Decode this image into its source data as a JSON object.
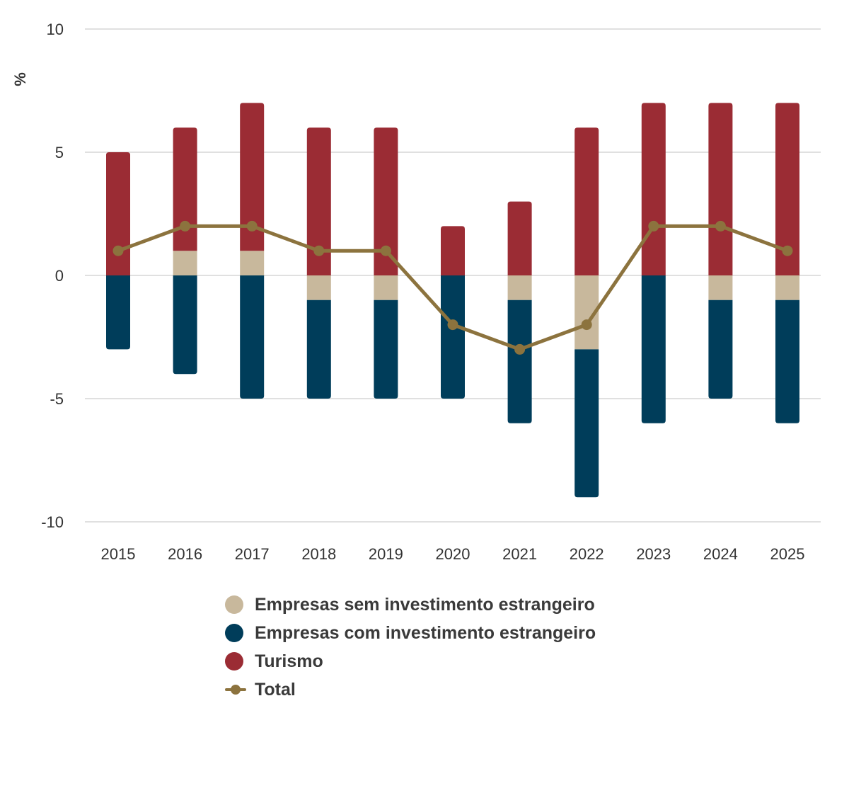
{
  "chart_data": {
    "type": "bar",
    "stacked": true,
    "categories": [
      "2015",
      "2016",
      "2017",
      "2018",
      "2019",
      "2020",
      "2021",
      "2022",
      "2023",
      "2024",
      "2025"
    ],
    "ylabel": "%",
    "ylim": [
      -10,
      10
    ],
    "yticks": [
      10,
      5,
      0,
      -5,
      -10
    ],
    "grid": true,
    "legend_position": "bottom",
    "series": [
      {
        "name": "Empresas sem investimento estrangeiro",
        "kind": "bar",
        "color": "#c8b89c",
        "values": [
          0,
          1,
          1,
          -1,
          -1,
          0,
          -1,
          -3,
          0,
          -1,
          -1
        ]
      },
      {
        "name": "Empresas com investimento estrangeiro",
        "kind": "bar",
        "color": "#003d5a",
        "values": [
          -3,
          -4,
          -5,
          -4,
          -4,
          -5,
          -5,
          -6,
          -6,
          -4,
          -5
        ]
      },
      {
        "name": "Turismo",
        "kind": "bar",
        "color": "#9b2c34",
        "values": [
          5,
          5,
          6,
          6,
          6,
          2,
          3,
          6,
          7,
          7,
          7
        ]
      },
      {
        "name": "Total",
        "kind": "line",
        "color": "#8c733e",
        "values": [
          1,
          2,
          2,
          1,
          1,
          -2,
          -3,
          -2,
          2,
          2,
          1
        ]
      }
    ]
  }
}
